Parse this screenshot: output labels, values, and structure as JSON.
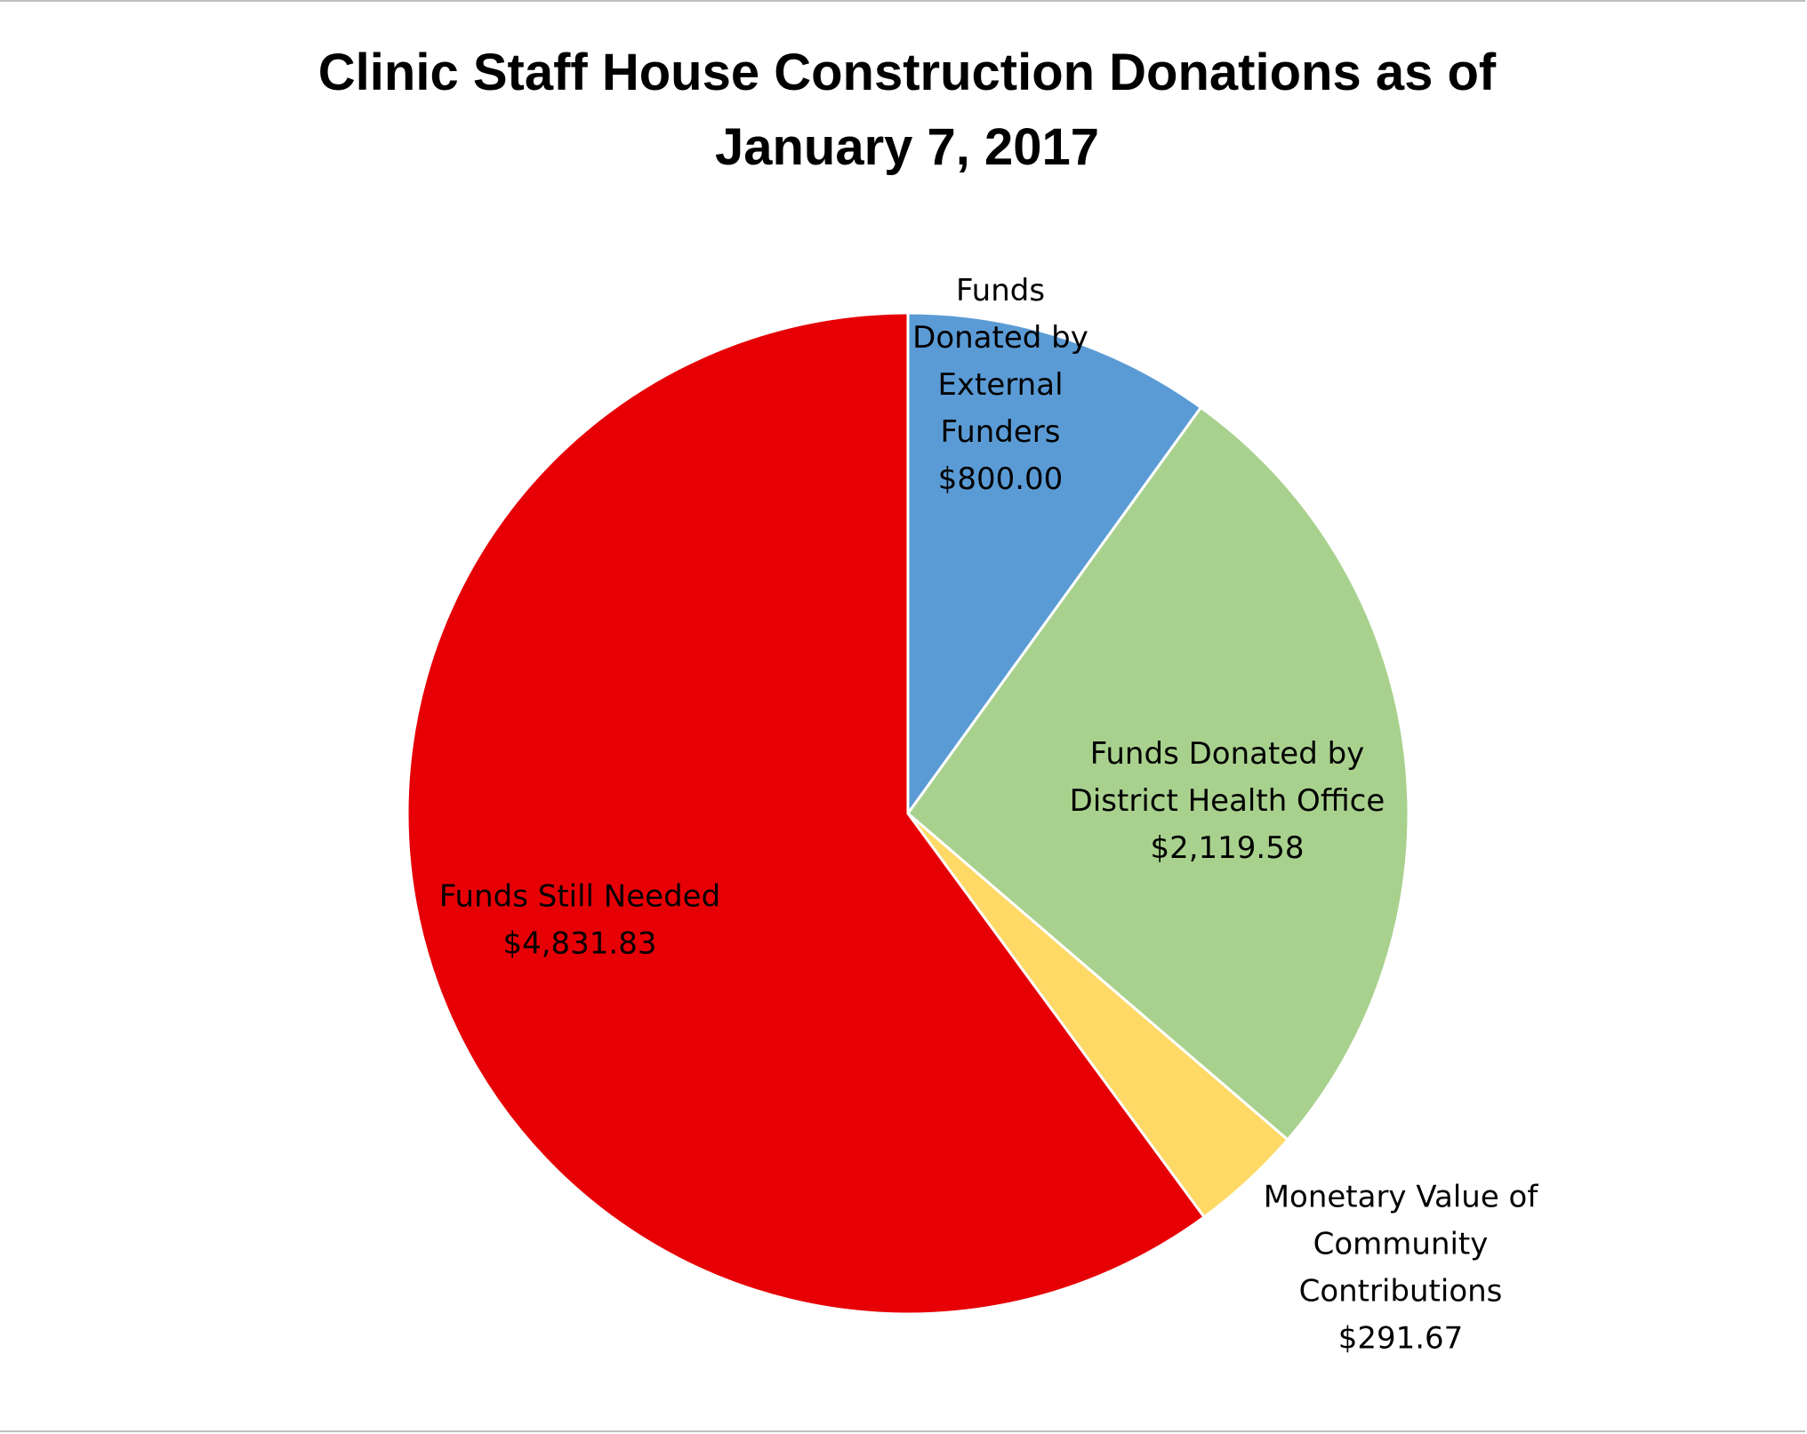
{
  "chart_data": {
    "type": "pie",
    "title_lines": [
      "Clinic Staff House Construction Donations as of",
      "January 7, 2017"
    ],
    "start_angle_deg": 0,
    "direction": "clockwise",
    "slices": [
      {
        "name": "Funds Donated by External Funders",
        "value": 800.0,
        "value_label": "$800.00",
        "label_lines": [
          "Funds",
          "Donated by",
          "External",
          "Funders",
          "$800.00"
        ],
        "color": "#5b9bd5"
      },
      {
        "name": "Funds Donated by District Health Office",
        "value": 2119.58,
        "value_label": "$2,119.58",
        "label_lines": [
          "Funds Donated by",
          "District Health Office",
          "$2,119.58"
        ],
        "color": "#a9d18e"
      },
      {
        "name": "Monetary Value of Community Contributions",
        "value": 291.67,
        "value_label": "$291.67",
        "label_lines": [
          "Monetary Value of",
          "Community",
          "Contributions",
          "$291.67"
        ],
        "color": "#ffd966"
      },
      {
        "name": "Funds Still Needed",
        "value": 4831.83,
        "value_label": "$4,831.83",
        "label_lines": [
          "Funds Still Needed",
          "$4,831.83"
        ],
        "color": "#e60006"
      }
    ],
    "legend": "none"
  }
}
